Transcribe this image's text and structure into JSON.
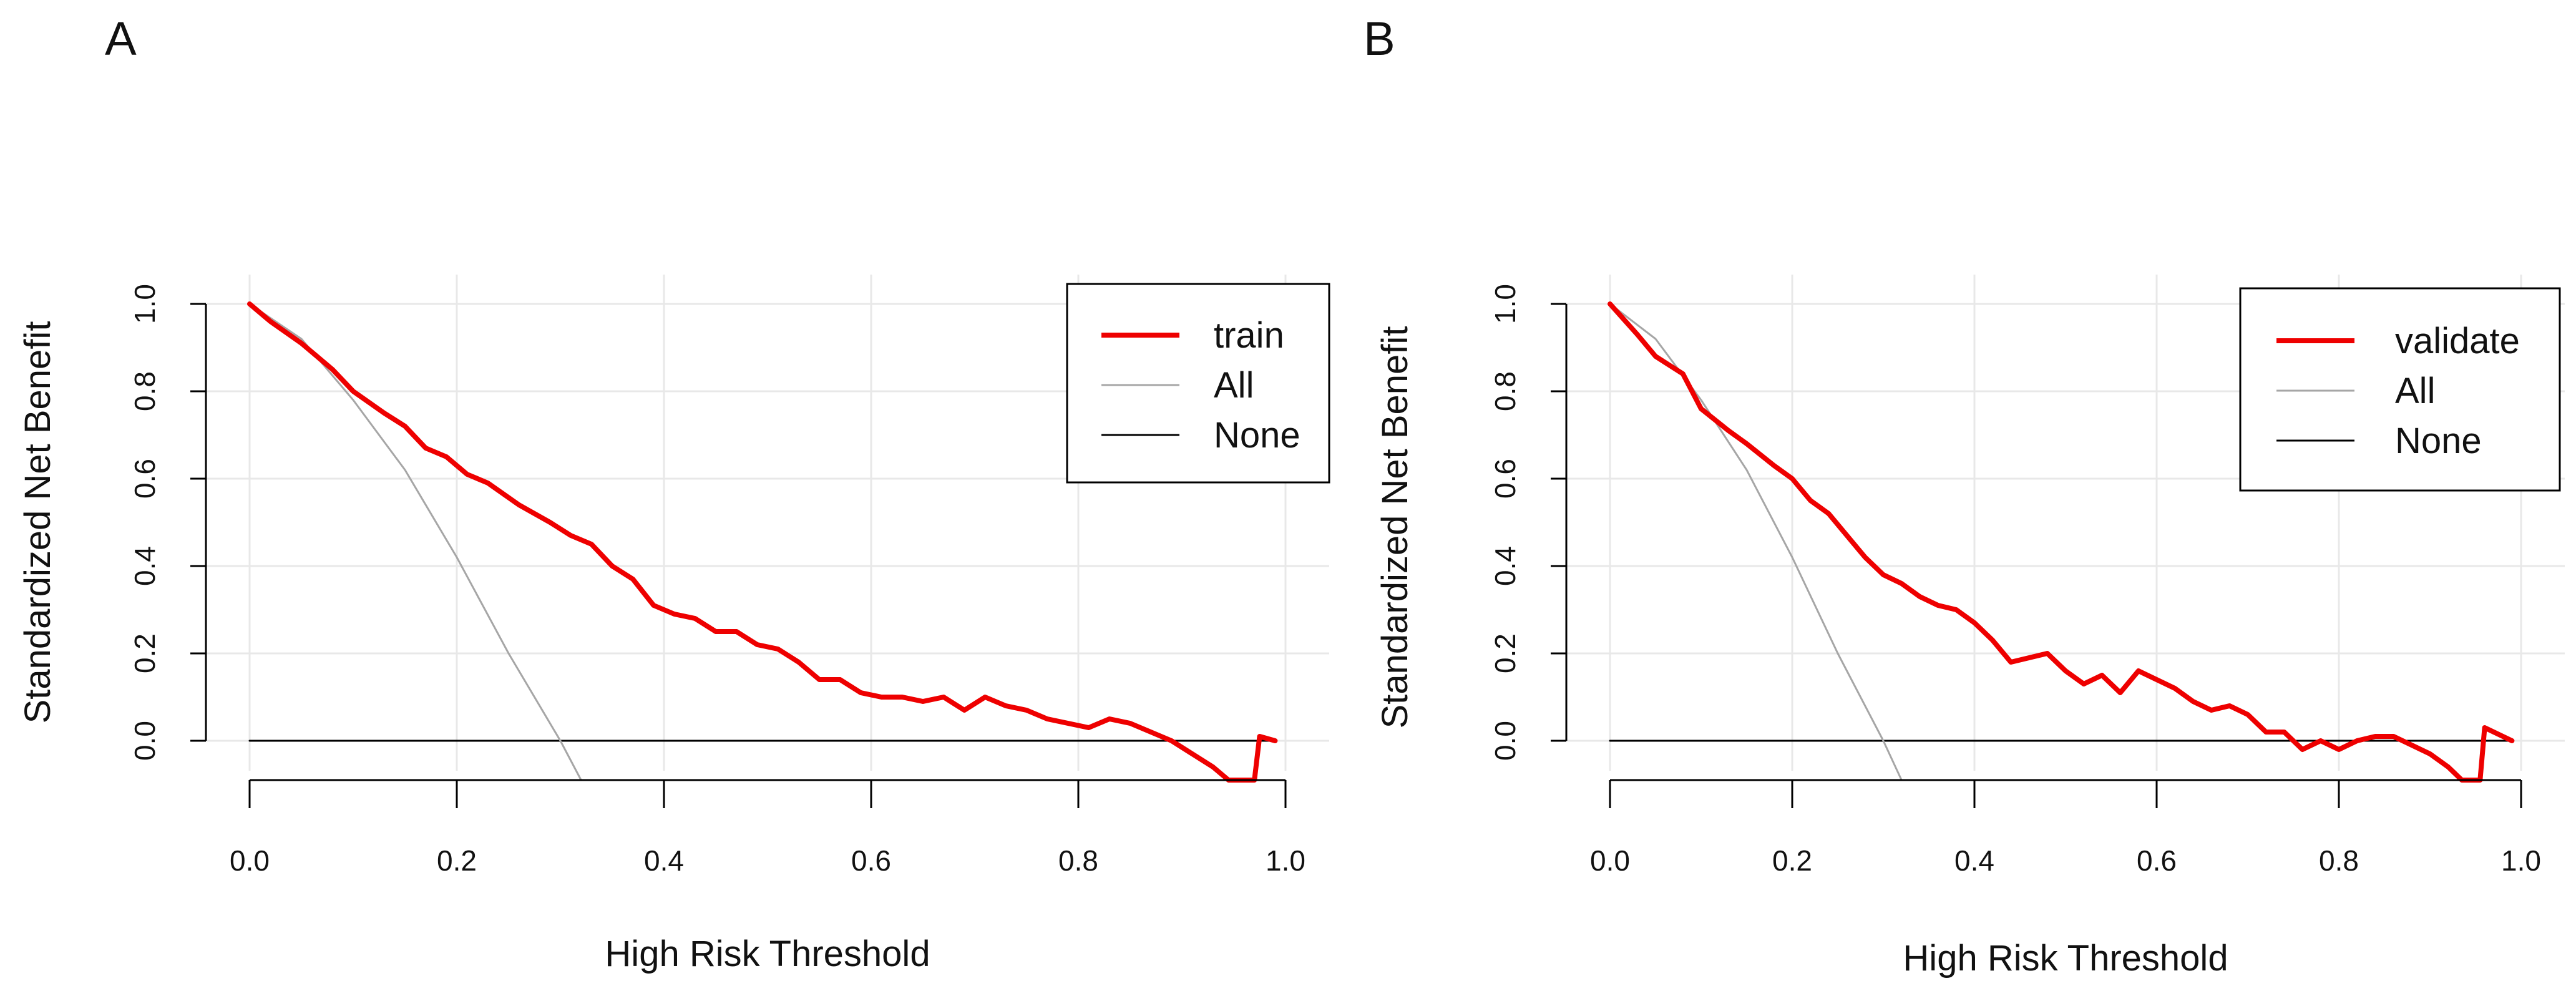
{
  "colors": {
    "model": "#ee0000",
    "all": "#a6a6a6",
    "none": "#000000",
    "grid": "#e8e8e8"
  },
  "chart_data": [
    {
      "type": "line",
      "panel": "A",
      "xlabel": "High Risk Threshold",
      "ylabel": "Standardized Net Benefit",
      "xlim": [
        0,
        1
      ],
      "ylim": [
        -0.09,
        1.0
      ],
      "xticks": [
        0,
        0.2,
        0.4,
        0.6,
        0.8,
        1.0
      ],
      "xtick_labels": [
        "0.0",
        "0.2",
        "0.4",
        "0.6",
        "0.8",
        "1.0"
      ],
      "yticks": [
        0,
        0.2,
        0.4,
        0.6,
        0.8,
        1.0
      ],
      "ytick_labels": [
        "0.0",
        "0.2",
        "0.4",
        "0.6",
        "0.8",
        "1.0"
      ],
      "grid": true,
      "legend_position": "top-right",
      "series": [
        {
          "name": "train",
          "color": "#ee0000",
          "x": [
            0,
            0.02,
            0.05,
            0.08,
            0.1,
            0.13,
            0.15,
            0.17,
            0.19,
            0.21,
            0.23,
            0.26,
            0.29,
            0.31,
            0.33,
            0.35,
            0.37,
            0.39,
            0.41,
            0.43,
            0.45,
            0.47,
            0.49,
            0.51,
            0.53,
            0.55,
            0.57,
            0.59,
            0.61,
            0.63,
            0.65,
            0.67,
            0.69,
            0.71,
            0.73,
            0.75,
            0.77,
            0.79,
            0.81,
            0.83,
            0.85,
            0.87,
            0.89,
            0.91,
            0.93,
            0.945,
            0.97,
            0.975,
            0.99
          ],
          "y": [
            1,
            0.96,
            0.91,
            0.85,
            0.8,
            0.75,
            0.72,
            0.67,
            0.65,
            0.61,
            0.59,
            0.54,
            0.5,
            0.47,
            0.45,
            0.4,
            0.37,
            0.31,
            0.29,
            0.28,
            0.25,
            0.25,
            0.22,
            0.21,
            0.18,
            0.14,
            0.14,
            0.11,
            0.1,
            0.1,
            0.09,
            0.1,
            0.07,
            0.1,
            0.08,
            0.07,
            0.05,
            0.04,
            0.03,
            0.05,
            0.04,
            0.02,
            0.0,
            -0.03,
            -0.06,
            -0.09,
            -0.09,
            0.01,
            0.0
          ]
        },
        {
          "name": "All",
          "color": "#a6a6a6",
          "x": [
            0,
            0.05,
            0.1,
            0.15,
            0.2,
            0.25,
            0.3,
            0.32
          ],
          "y": [
            1,
            0.92,
            0.78,
            0.62,
            0.42,
            0.2,
            0.0,
            -0.09
          ]
        },
        {
          "name": "None",
          "color": "#000000",
          "x": [
            0,
            0.99
          ],
          "y": [
            0,
            0
          ]
        }
      ]
    },
    {
      "type": "line",
      "panel": "B",
      "xlabel": "High Risk Threshold",
      "ylabel": "Standardized Net Benefit",
      "xlim": [
        0,
        1
      ],
      "ylim": [
        -0.09,
        1.0
      ],
      "xticks": [
        0,
        0.2,
        0.4,
        0.6,
        0.8,
        1.0
      ],
      "xtick_labels": [
        "0.0",
        "0.2",
        "0.4",
        "0.6",
        "0.8",
        "1.0"
      ],
      "yticks": [
        0,
        0.2,
        0.4,
        0.6,
        0.8,
        1.0
      ],
      "ytick_labels": [
        "0.0",
        "0.2",
        "0.4",
        "0.6",
        "0.8",
        "1.0"
      ],
      "grid": true,
      "legend_position": "top-right",
      "series": [
        {
          "name": "validate",
          "color": "#ee0000",
          "x": [
            0,
            0.03,
            0.05,
            0.08,
            0.1,
            0.13,
            0.15,
            0.18,
            0.2,
            0.22,
            0.24,
            0.26,
            0.28,
            0.3,
            0.32,
            0.34,
            0.36,
            0.38,
            0.4,
            0.42,
            0.44,
            0.46,
            0.48,
            0.5,
            0.52,
            0.54,
            0.56,
            0.58,
            0.6,
            0.62,
            0.64,
            0.66,
            0.68,
            0.7,
            0.72,
            0.74,
            0.76,
            0.78,
            0.8,
            0.82,
            0.84,
            0.86,
            0.88,
            0.9,
            0.92,
            0.935,
            0.955,
            0.96,
            0.99
          ],
          "y": [
            1,
            0.93,
            0.88,
            0.84,
            0.76,
            0.71,
            0.68,
            0.63,
            0.6,
            0.55,
            0.52,
            0.47,
            0.42,
            0.38,
            0.36,
            0.33,
            0.31,
            0.3,
            0.27,
            0.23,
            0.18,
            0.19,
            0.2,
            0.16,
            0.13,
            0.15,
            0.11,
            0.16,
            0.14,
            0.12,
            0.09,
            0.07,
            0.08,
            0.06,
            0.02,
            0.02,
            -0.02,
            0.0,
            -0.02,
            0.0,
            0.01,
            0.01,
            -0.01,
            -0.03,
            -0.06,
            -0.09,
            -0.09,
            0.03,
            0.0
          ]
        },
        {
          "name": "All",
          "color": "#a6a6a6",
          "x": [
            0,
            0.05,
            0.1,
            0.15,
            0.2,
            0.25,
            0.3,
            0.32
          ],
          "y": [
            1,
            0.92,
            0.78,
            0.62,
            0.42,
            0.2,
            0.0,
            -0.09
          ]
        },
        {
          "name": "None",
          "color": "#000000",
          "x": [
            0,
            0.99
          ],
          "y": [
            0,
            0
          ]
        }
      ]
    }
  ]
}
